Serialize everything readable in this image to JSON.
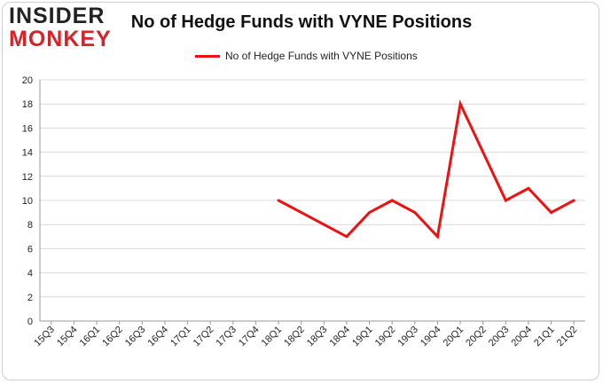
{
  "logo": {
    "line1": "INSIDER",
    "line2": "MONKEY"
  },
  "colors": {
    "line": "#ee1111",
    "grid": "#d9d9d9",
    "logo_red": "#d4242a"
  },
  "chart_data": {
    "type": "line",
    "title": "No of Hedge Funds with VYNE Positions",
    "xlabel": "",
    "ylabel": "",
    "ylim": [
      0,
      20
    ],
    "yticks": [
      0,
      2,
      4,
      6,
      8,
      10,
      12,
      14,
      16,
      18,
      20
    ],
    "grid": true,
    "legend_position": "top",
    "categories": [
      "15Q3",
      "15Q4",
      "16Q1",
      "16Q2",
      "16Q3",
      "16Q4",
      "17Q1",
      "17Q2",
      "17Q3",
      "17Q4",
      "18Q1",
      "18Q2",
      "18Q3",
      "18Q4",
      "19Q1",
      "19Q2",
      "19Q3",
      "19Q4",
      "20Q1",
      "20Q2",
      "20Q3",
      "20Q4",
      "21Q1",
      "21Q2"
    ],
    "series": [
      {
        "name": "No of Hedge Funds with VYNE Positions",
        "values": [
          null,
          null,
          null,
          null,
          null,
          null,
          null,
          null,
          null,
          null,
          10,
          9,
          8,
          7,
          9,
          10,
          9,
          7,
          18,
          14,
          10,
          11,
          9,
          10
        ]
      }
    ]
  }
}
